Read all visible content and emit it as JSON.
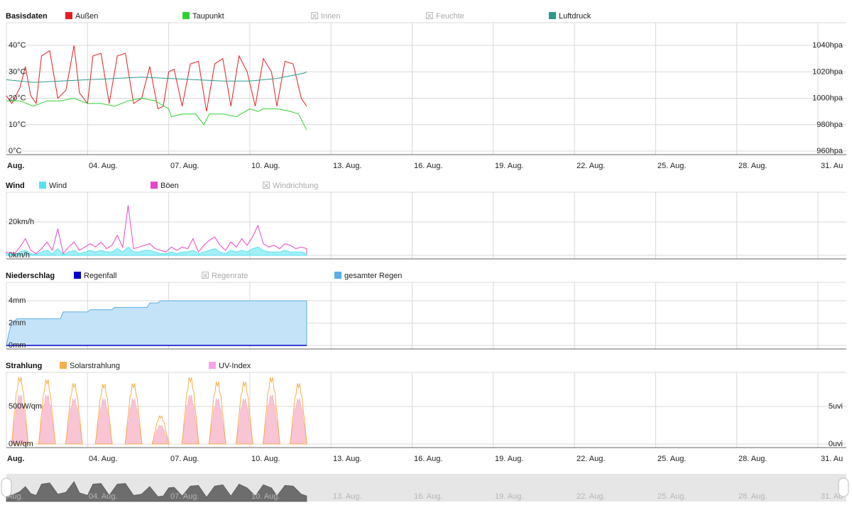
{
  "x_axis": {
    "labels": [
      "Aug.",
      "04. Aug.",
      "07. Aug.",
      "10. Aug.",
      "13. Aug.",
      "16. Aug.",
      "19. Aug.",
      "22. Aug.",
      "25. Aug.",
      "28. Aug.",
      "31. Au"
    ],
    "first_label_bold": true
  },
  "colors": {
    "aussen": "#e21f1f",
    "taupunkt": "#2ed22e",
    "luftdruck": "#2a9a8c",
    "wind": "#58e2ef",
    "boeen": "#e647c8",
    "regenfall": "#0000c8",
    "gesamter_regen": "#5aaee6",
    "solar": "#f5b04a",
    "uv": "#f4a5ea",
    "grid": "#d8d8d8",
    "axis": "#666666",
    "disabled": "#aaaaaa"
  },
  "chart_data": [
    {
      "id": "basisdaten",
      "type": "line",
      "title": "Basisdaten",
      "x_range_days": [
        1,
        31
      ],
      "legend": [
        {
          "key": "aussen",
          "label": "Außen",
          "enabled": true
        },
        {
          "key": "taupunkt",
          "label": "Taupunkt",
          "enabled": true
        },
        {
          "key": "innen",
          "label": "Innen",
          "enabled": false
        },
        {
          "key": "feuchte",
          "label": "Feuchte",
          "enabled": false
        },
        {
          "key": "luftdruck",
          "label": "Luftdruck",
          "enabled": true
        }
      ],
      "y_left": {
        "ticks": [
          0,
          10,
          20,
          30,
          40
        ],
        "labels": [
          "0°C",
          "10°C",
          "20°C",
          "30°C",
          "40°C"
        ],
        "range": [
          0,
          50
        ]
      },
      "y_right": {
        "ticks": [
          960,
          980,
          1000,
          1020,
          1040
        ],
        "labels": [
          "960hpa",
          "980hpa",
          "1000hpa",
          "1020hpa",
          "1040hpa"
        ],
        "range": [
          960,
          1040
        ]
      },
      "series": [
        {
          "key": "aussen",
          "name": "Außen",
          "axis": "left",
          "x": [
            1,
            1.2,
            1.5,
            1.7,
            1.9,
            2.1,
            2.3,
            2.6,
            2.9,
            3.2,
            3.5,
            3.7,
            4.0,
            4.2,
            4.5,
            4.8,
            5.1,
            5.4,
            5.7,
            6.0,
            6.3,
            6.6,
            6.8,
            7.0,
            7.2,
            7.5,
            7.8,
            8.1,
            8.4,
            8.7,
            9.0,
            9.3,
            9.6,
            9.9,
            10.2,
            10.5,
            10.8,
            11.0,
            11.3,
            11.6,
            11.9,
            12.1
          ],
          "y": [
            21,
            18,
            24,
            32,
            21,
            18,
            36,
            38,
            20,
            23,
            40,
            22,
            18,
            36,
            37,
            18,
            36,
            37,
            18,
            20,
            32,
            16,
            17,
            30,
            31,
            17,
            33,
            34,
            15,
            33,
            35,
            17,
            36,
            30,
            17,
            35,
            30,
            17,
            34,
            33,
            20,
            17
          ]
        },
        {
          "key": "taupunkt",
          "name": "Taupunkt",
          "axis": "left",
          "x": [
            1,
            1.5,
            2.0,
            2.5,
            3.0,
            3.5,
            4.0,
            4.5,
            5.0,
            5.5,
            6.0,
            6.5,
            7.0,
            7.1,
            7.5,
            8.0,
            8.3,
            8.5,
            9.0,
            9.5,
            10.0,
            10.3,
            10.5,
            11.0,
            11.5,
            11.8,
            12.0,
            12.1
          ],
          "y": [
            19,
            19,
            17,
            19,
            19,
            20,
            18,
            18,
            17,
            19,
            20,
            19,
            16,
            13,
            14,
            14,
            10,
            14,
            14,
            13,
            16,
            15,
            16,
            16,
            15,
            14,
            10,
            8
          ]
        },
        {
          "key": "luftdruck",
          "name": "Luftdruck",
          "axis": "right",
          "x": [
            1,
            2,
            3,
            4,
            5,
            6,
            7,
            8,
            9,
            10,
            11,
            12,
            12.1
          ],
          "y": [
            1014,
            1012,
            1013,
            1014,
            1015,
            1016,
            1015,
            1014,
            1013,
            1013,
            1015,
            1019,
            1020
          ]
        }
      ]
    },
    {
      "id": "wind",
      "type": "area",
      "title": "Wind",
      "legend": [
        {
          "key": "wind",
          "label": "Wind",
          "enabled": true
        },
        {
          "key": "boeen",
          "label": "Böen",
          "enabled": true
        },
        {
          "key": "windrichtung",
          "label": "Windrichtung",
          "enabled": false
        }
      ],
      "y_left": {
        "ticks": [
          0,
          20
        ],
        "labels": [
          "0km/h",
          "20km/h"
        ],
        "range": [
          0,
          40
        ]
      },
      "series": [
        {
          "key": "boeen",
          "name": "Böen",
          "x": [
            1,
            1.3,
            1.5,
            1.7,
            1.9,
            2.1,
            2.3,
            2.5,
            2.7,
            2.9,
            3.1,
            3.3,
            3.5,
            3.7,
            3.9,
            4.1,
            4.3,
            4.5,
            4.7,
            4.9,
            5.1,
            5.3,
            5.5,
            5.7,
            5.9,
            6.1,
            6.3,
            6.5,
            6.7,
            6.9,
            7.1,
            7.3,
            7.5,
            7.7,
            7.9,
            8.1,
            8.3,
            8.5,
            8.7,
            8.9,
            9.1,
            9.3,
            9.5,
            9.7,
            9.9,
            10.1,
            10.3,
            10.5,
            10.7,
            10.9,
            11.1,
            11.3,
            11.5,
            11.7,
            11.9,
            12.1
          ],
          "y": [
            2,
            1,
            5,
            10,
            3,
            1,
            4,
            8,
            3,
            16,
            1,
            5,
            8,
            3,
            5,
            7,
            5,
            8,
            4,
            6,
            12,
            5,
            30,
            4,
            5,
            6,
            7,
            4,
            3,
            2,
            5,
            3,
            5,
            4,
            10,
            2,
            6,
            9,
            11,
            6,
            3,
            8,
            5,
            10,
            6,
            11,
            18,
            7,
            5,
            6,
            4,
            7,
            6,
            4,
            5,
            4
          ]
        },
        {
          "key": "wind",
          "name": "Wind",
          "x": [
            1,
            1.3,
            1.5,
            1.7,
            1.9,
            2.1,
            2.3,
            2.5,
            2.7,
            2.9,
            3.1,
            3.3,
            3.5,
            3.7,
            3.9,
            4.1,
            4.3,
            4.5,
            4.7,
            4.9,
            5.1,
            5.3,
            5.5,
            5.7,
            5.9,
            6.1,
            6.3,
            6.5,
            6.7,
            6.9,
            7.1,
            7.3,
            7.5,
            7.7,
            7.9,
            8.1,
            8.3,
            8.5,
            8.7,
            8.9,
            9.1,
            9.3,
            9.5,
            9.7,
            9.9,
            10.1,
            10.3,
            10.5,
            10.7,
            10.9,
            11.1,
            11.3,
            11.5,
            11.7,
            11.9,
            12.1
          ],
          "y": [
            1,
            0.5,
            2,
            3,
            1,
            0.5,
            2,
            3,
            1,
            4,
            0.5,
            2,
            3,
            1,
            2,
            3,
            2,
            3,
            2,
            2,
            4,
            2,
            5,
            2,
            2,
            3,
            3,
            2,
            1,
            1,
            2,
            1,
            2,
            2,
            3,
            1,
            2,
            3,
            4,
            2,
            1,
            3,
            2,
            3,
            2,
            4,
            5,
            3,
            2,
            2,
            2,
            3,
            2,
            2,
            2,
            1
          ]
        }
      ]
    },
    {
      "id": "niederschlag",
      "type": "area",
      "title": "Niederschlag",
      "legend": [
        {
          "key": "regenfall",
          "label": "Regenfall",
          "enabled": true
        },
        {
          "key": "regenrate",
          "label": "Regenrate",
          "enabled": false
        },
        {
          "key": "gesamter_regen",
          "label": "gesamter Regen",
          "enabled": true
        }
      ],
      "y_left": {
        "ticks": [
          0,
          2,
          4
        ],
        "labels": [
          "0mm",
          "2mm",
          "4mm"
        ],
        "range": [
          0,
          6
        ]
      },
      "series": [
        {
          "key": "gesamter_regen",
          "name": "gesamter Regen",
          "x": [
            1,
            1.1,
            1.2,
            1.3,
            1.4,
            3.0,
            3.1,
            4.0,
            4.1,
            4.9,
            5.0,
            6.2,
            6.3,
            6.6,
            6.7,
            12.1
          ],
          "y": [
            0,
            1.2,
            2.0,
            2.2,
            2.4,
            2.4,
            3.0,
            3.0,
            3.2,
            3.2,
            3.4,
            3.4,
            3.8,
            3.8,
            4.0,
            4.0
          ]
        },
        {
          "key": "regenfall",
          "name": "Regenfall",
          "x": [
            1,
            12.1
          ],
          "y": [
            0,
            0
          ]
        }
      ]
    },
    {
      "id": "strahlung",
      "type": "area",
      "title": "Strahlung",
      "legend": [
        {
          "key": "solar",
          "label": "Solarstrahlung",
          "enabled": true
        },
        {
          "key": "uv",
          "label": "UV-Index",
          "enabled": true
        }
      ],
      "y_left": {
        "ticks": [
          0,
          500
        ],
        "labels": [
          "0W/qm",
          "500W/qm"
        ],
        "range": [
          0,
          1000
        ]
      },
      "y_right": {
        "ticks": [
          0,
          5
        ],
        "labels": [
          "0uvi",
          "5uvi"
        ],
        "range": [
          0,
          10
        ]
      },
      "series": [
        {
          "key": "solar",
          "name": "Solarstrahlung",
          "day_peaks_x": [
            1.5,
            2.5,
            3.5,
            4.6,
            5.7,
            6.7,
            7.8,
            8.8,
            9.8,
            10.8,
            11.8
          ],
          "day_peaks_y": [
            880,
            850,
            800,
            790,
            800,
            370,
            880,
            820,
            820,
            880,
            800
          ]
        },
        {
          "key": "uv",
          "name": "UV-Index",
          "day_peaks_x": [
            1.5,
            2.5,
            3.5,
            4.6,
            5.7,
            6.7,
            7.8,
            8.8,
            9.8,
            10.8,
            11.8
          ],
          "day_peaks_y": [
            6.5,
            6.5,
            6.0,
            6.0,
            6.0,
            2.5,
            6.5,
            6.0,
            6.0,
            6.5,
            6.0
          ]
        }
      ]
    }
  ]
}
